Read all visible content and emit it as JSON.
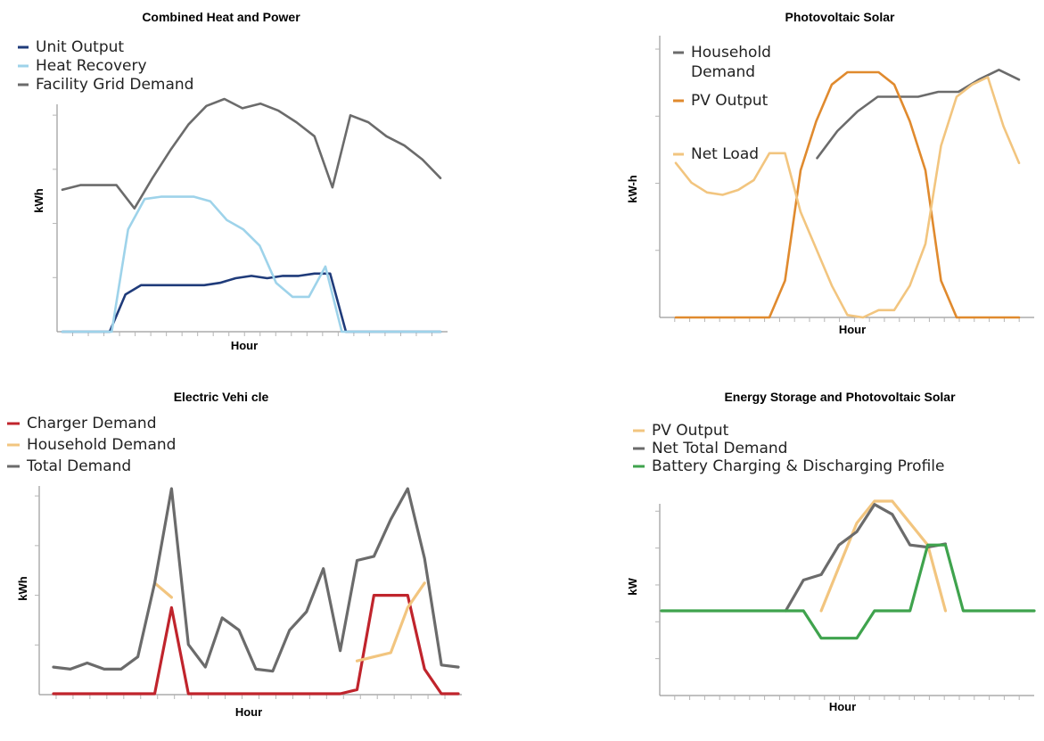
{
  "chart_data": [
    {
      "type": "line",
      "title": "Combined Heat and Power",
      "xlabel": "Hour",
      "ylabel": "kWh",
      "legend_position": "top-left",
      "grid": false,
      "ylim": [
        0,
        100
      ],
      "series": [
        {
          "name": "Unit Output",
          "color": "#1f3b7a",
          "values": [
            0,
            0,
            0,
            0,
            16,
            20,
            20,
            20,
            20,
            20,
            21,
            23,
            24,
            23,
            24,
            24,
            25,
            25,
            0,
            0,
            0,
            0,
            0,
            0,
            0
          ]
        },
        {
          "name": "Heat Recovery",
          "color": "#9ed3ea",
          "values": [
            0,
            0,
            0,
            0,
            44,
            57,
            58,
            58,
            58,
            56,
            48,
            44,
            37,
            21,
            15,
            15,
            28,
            0,
            0,
            0,
            0,
            0,
            0,
            0
          ]
        },
        {
          "name": "Facility Grid Demand",
          "color": "#6b6b6b",
          "values": [
            61,
            63,
            63,
            63,
            53,
            66,
            78,
            89,
            97,
            100,
            96,
            98,
            95,
            90,
            84,
            62,
            93,
            90,
            84,
            80,
            74,
            66
          ]
        }
      ]
    },
    {
      "type": "line",
      "title": "Photovoltaic Solar",
      "xlabel": "Hour",
      "ylabel": "kW-h",
      "legend_position": "top-left",
      "grid": false,
      "ylim": [
        0,
        100
      ],
      "series": [
        {
          "name": "Household\nDemand",
          "color": "#6b6b6b",
          "values": [
            null,
            null,
            null,
            null,
            null,
            null,
            null,
            65,
            76,
            84,
            90,
            90,
            90,
            92,
            92,
            97,
            101,
            97
          ]
        },
        {
          "name": "PV Output",
          "color": "#e08a2e",
          "values": [
            0,
            0,
            0,
            0,
            0,
            0,
            0,
            15,
            60,
            80,
            95,
            100,
            100,
            100,
            95,
            80,
            60,
            15,
            0,
            0,
            0,
            0,
            0
          ]
        },
        {
          "name": "Net Load",
          "color": "#f2c57f",
          "values": [
            63,
            55,
            51,
            50,
            52,
            56,
            67,
            67,
            43,
            28,
            13,
            1,
            0,
            3,
            3,
            13,
            30,
            70,
            90,
            95,
            98,
            78,
            63
          ]
        }
      ]
    },
    {
      "type": "line",
      "title": "Electric Vehi cle",
      "xlabel": "Hour",
      "ylabel": "kWh",
      "legend_position": "top-left",
      "grid": false,
      "ylim": [
        0,
        100
      ],
      "series": [
        {
          "name": "Charger Demand",
          "color": "#c0242c",
          "values": [
            0,
            0,
            0,
            0,
            0,
            0,
            0,
            42,
            0,
            0,
            0,
            0,
            0,
            0,
            0,
            0,
            0,
            0,
            2,
            48,
            48,
            48,
            12,
            0,
            0
          ]
        },
        {
          "name": "Household Demand",
          "color": "#f2c57f",
          "values": [
            null,
            null,
            null,
            null,
            null,
            null,
            54,
            47,
            null,
            null,
            null,
            null,
            null,
            null,
            null,
            null,
            null,
            null,
            16,
            18,
            20,
            42,
            54,
            null,
            null
          ]
        },
        {
          "name": "Total Demand",
          "color": "#6b6b6b",
          "values": [
            13,
            12,
            15,
            12,
            12,
            18,
            54,
            100,
            24,
            13,
            37,
            31,
            12,
            11,
            31,
            40,
            61,
            21,
            65,
            67,
            85,
            100,
            66,
            14,
            13
          ]
        }
      ]
    },
    {
      "type": "line",
      "title": "Energy Storage and Photovoltaic Solar",
      "xlabel": "Hour",
      "ylabel": "kW",
      "legend_position": "top-left",
      "grid": false,
      "ylim": [
        -35,
        100
      ],
      "series": [
        {
          "name": "PV Output",
          "color": "#f2c57f",
          "values": [
            null,
            null,
            null,
            null,
            null,
            null,
            null,
            null,
            null,
            0,
            40,
            80,
            100,
            100,
            80,
            60,
            0,
            null,
            null,
            null,
            null,
            null
          ]
        },
        {
          "name": "Net Total Demand",
          "color": "#6b6b6b",
          "values": [
            null,
            null,
            null,
            null,
            null,
            null,
            null,
            0,
            28,
            33,
            60,
            72,
            97,
            88,
            60,
            58,
            61,
            null,
            null,
            null,
            null,
            null
          ]
        },
        {
          "name": "Battery Charging & Discharging Profile",
          "color": "#3fa34d",
          "values": [
            0,
            0,
            0,
            0,
            0,
            0,
            0,
            0,
            0,
            -25,
            -25,
            -25,
            0,
            0,
            0,
            60,
            60,
            0,
            0,
            0,
            0,
            0
          ]
        }
      ]
    }
  ]
}
